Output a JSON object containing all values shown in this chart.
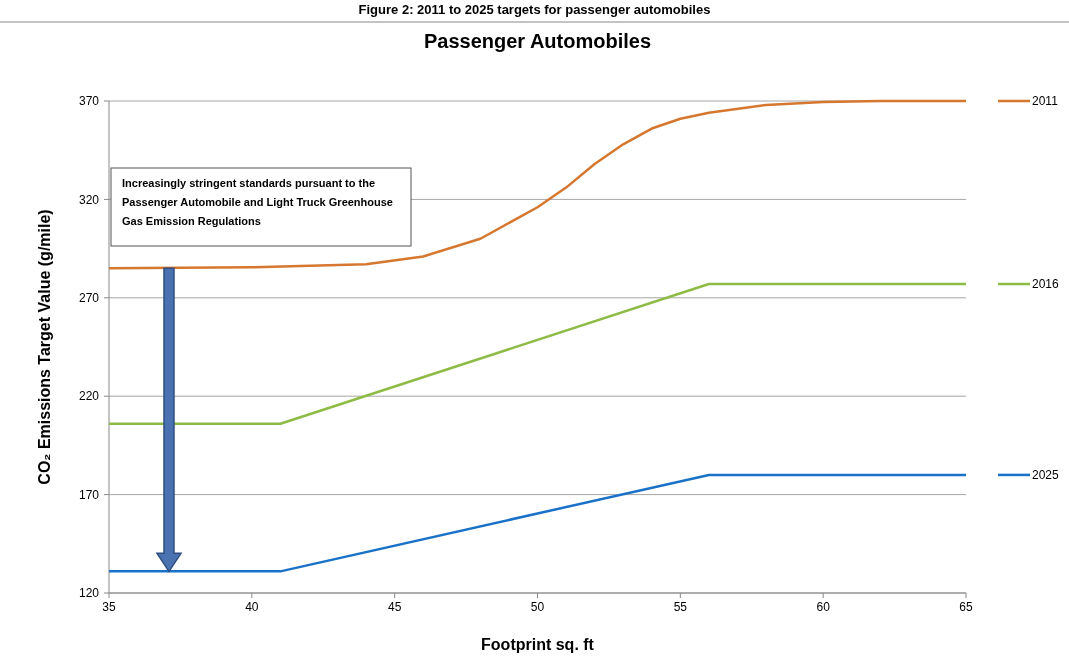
{
  "chart_data": {
    "type": "line",
    "title": "Passenger Automobiles",
    "xlabel": "Footprint sq. ft",
    "ylabel": "CO₂ Emissions Target Value (g/mile)",
    "annotations": [
      "Figure 2: 2011 to 2025 targets for passenger automobiles",
      "Increasingly stringent standards pursuant to the Passenger Automobile and Light Truck Greenhouse Gas Emission Regulations"
    ],
    "series": [
      {
        "name": "2011",
        "color": "#d5772f",
        "x": [
          35,
          40,
          44,
          46,
          48,
          50,
          51,
          52,
          53,
          54,
          55,
          56,
          58,
          60,
          62,
          65
        ],
        "values": [
          285,
          285.5,
          287,
          291,
          300,
          316,
          326,
          338,
          348,
          356,
          361,
          364,
          368,
          369.5,
          370,
          370
        ]
      },
      {
        "name": "2016",
        "color": "#8dbb45",
        "x": [
          35,
          41,
          56,
          65
        ],
        "values": [
          206,
          206,
          277,
          277
        ]
      },
      {
        "name": "2025",
        "color": "#1a72c8",
        "x": [
          35,
          41,
          56,
          65
        ],
        "values": [
          131,
          131,
          180,
          180
        ]
      }
    ],
    "xlim": [
      35,
      65
    ],
    "xticks": [
      35,
      40,
      45,
      50,
      55,
      60,
      65
    ],
    "ylim": [
      120,
      370
    ],
    "yticks": [
      120,
      170,
      220,
      270,
      320,
      370
    ],
    "grid": "y",
    "legend": "right",
    "marker": "none",
    "line_style": "solid"
  }
}
